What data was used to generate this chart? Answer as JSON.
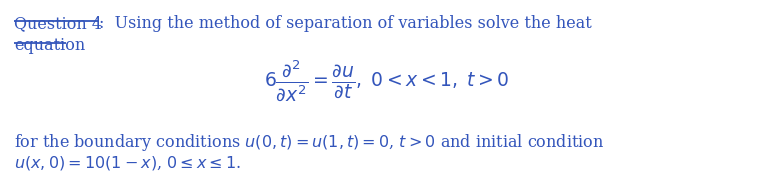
{
  "text_color": "#3355BB",
  "bg_color": "#ffffff",
  "font_size": 11.5,
  "eq_font_size": 13.5,
  "line1": "Question 4",
  "line1b": ":  Using the method of separation of variables solve the heat",
  "line2": "equation",
  "equation": "$6\\dfrac{\\partial^2}{\\partial x^2} = \\dfrac{\\partial u}{\\partial t},\\; 0 < x < 1,\\; t > 0$",
  "line3": "for the boundary conditions $u(0, t) = u(1,t) = 0$, $t > 0$ and initial condition",
  "line4": "$u(x, 0) = 10(1 - x)$, $0 \\leq x \\leq 1$."
}
